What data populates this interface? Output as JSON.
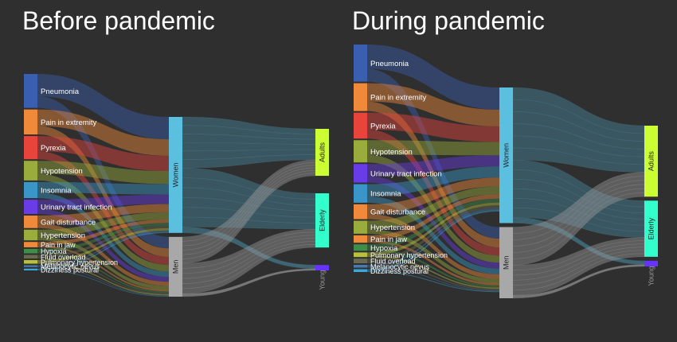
{
  "panels": [
    {
      "title": "Before pandemic",
      "sources": [
        {
          "label": "Pneumonia",
          "color": "#3b5fb0",
          "value": 38
        },
        {
          "label": "Pain in extremity",
          "color": "#f08a3a",
          "value": 28
        },
        {
          "label": "Pyrexia",
          "color": "#e8443c",
          "value": 26
        },
        {
          "label": "Hypotension",
          "color": "#9aac3c",
          "value": 22
        },
        {
          "label": "Insomnia",
          "color": "#3a96c8",
          "value": 18
        },
        {
          "label": "Urinary tract infection",
          "color": "#6a3ce8",
          "value": 16
        },
        {
          "label": "Gait disturbance",
          "color": "#f08a3a",
          "value": 14
        },
        {
          "label": "Hypertension",
          "color": "#9aac3c",
          "value": 12
        },
        {
          "label": "Pain in jaw",
          "color": "#f08a3a",
          "value": 6
        },
        {
          "label": "Hypoxia",
          "color": "#3e8e4a",
          "value": 5
        },
        {
          "label": "Fluid overload",
          "color": "#6a6a52",
          "value": 4
        },
        {
          "label": "Pulmonary hypertension",
          "color": "#b8c03c",
          "value": 4
        },
        {
          "label": "Melanocytic nevus",
          "color": "#4a7ab0",
          "value": 2
        },
        {
          "label": "Dizziness postural",
          "color": "#3aa8d8",
          "value": 2
        }
      ],
      "genders": [
        {
          "label": "Women",
          "color": "#5bbfe0",
          "value": 130
        },
        {
          "label": "Men",
          "color": "#a8a8a8",
          "value": 67
        }
      ],
      "ages": [
        {
          "label": "Adults",
          "color": "#ccff33",
          "value": 78
        },
        {
          "label": "Elderly",
          "color": "#33ffcc",
          "value": 90
        },
        {
          "label": "Young",
          "color": "#6633ff",
          "value": 9
        }
      ]
    },
    {
      "title": "During pandemic",
      "sources": [
        {
          "label": "Pneumonia",
          "color": "#3b5fb0",
          "value": 40
        },
        {
          "label": "Pain in extremity",
          "color": "#f08a3a",
          "value": 30
        },
        {
          "label": "Pyrexia",
          "color": "#e8443c",
          "value": 28
        },
        {
          "label": "Hypotension",
          "color": "#9aac3c",
          "value": 24
        },
        {
          "label": "Urinary tract infection",
          "color": "#6a3ce8",
          "value": 20
        },
        {
          "label": "Insomnia",
          "color": "#3a96c8",
          "value": 20
        },
        {
          "label": "Gait disturbance",
          "color": "#f08a3a",
          "value": 16
        },
        {
          "label": "Hypertension",
          "color": "#9aac3c",
          "value": 14
        },
        {
          "label": "Pain in jaw",
          "color": "#f08a3a",
          "value": 8
        },
        {
          "label": "Hypoxia",
          "color": "#3e8e4a",
          "value": 7
        },
        {
          "label": "Pulmonary hypertension",
          "color": "#b8c03c",
          "value": 5
        },
        {
          "label": "Fluid overload",
          "color": "#6a6a52",
          "value": 5
        },
        {
          "label": "Melanocytic nevus",
          "color": "#4a7ab0",
          "value": 3
        },
        {
          "label": "Dizziness postural",
          "color": "#3aa8d8",
          "value": 3
        }
      ],
      "genders": [
        {
          "label": "Women",
          "color": "#5bbfe0",
          "value": 160
        },
        {
          "label": "Men",
          "color": "#a8a8a8",
          "value": 84
        }
      ],
      "ages": [
        {
          "label": "Adults",
          "color": "#ccff33",
          "value": 100
        },
        {
          "label": "Elderly",
          "color": "#33ffcc",
          "value": 79
        },
        {
          "label": "Young",
          "color": "#6633ff",
          "value": 8
        }
      ]
    }
  ],
  "colors": {
    "background": "#2f2f2f",
    "text": "#ffffff",
    "link_women_age": "#4a8aa0",
    "link_men_age": "#9a9a9a"
  }
}
